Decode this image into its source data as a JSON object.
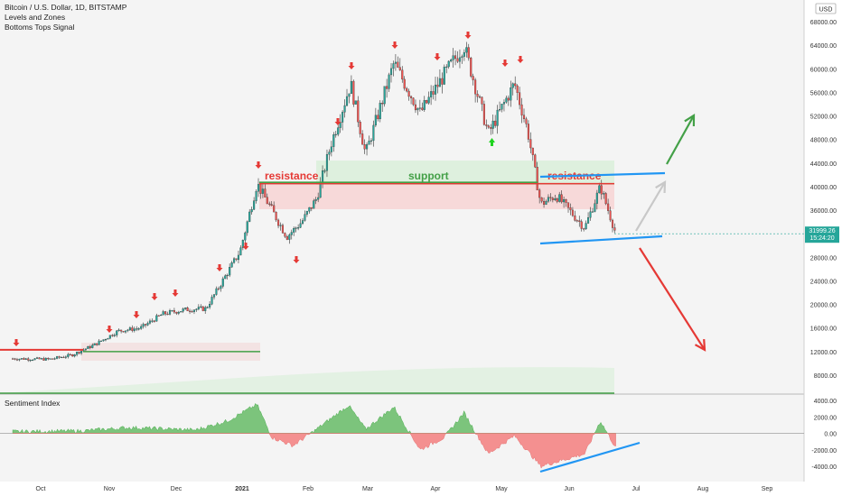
{
  "header": {
    "symbol_line": "Bitcoin / U.S. Dollar, 1D, BITSTAMP",
    "indicators": [
      "Levels and Zones",
      "Bottoms Tops Signal"
    ],
    "currency_badge": "USD"
  },
  "sentiment_panel": {
    "title": "Sentiment Index"
  },
  "last_price": {
    "value": "31999.26",
    "countdown": "15:24:20",
    "color": "#26a69a"
  },
  "annotations": {
    "resistance_left": "resistance",
    "support": "support",
    "resistance_right": "resistance"
  },
  "chart_data": {
    "type": "candlestick",
    "price_axis_ticks": [
      "68000.00",
      "64000.00",
      "60000.00",
      "56000.00",
      "52000.00",
      "48000.00",
      "44000.00",
      "40000.00",
      "36000.00",
      "32000.00",
      "28000.00",
      "24000.00",
      "20000.00",
      "16000.00",
      "12000.00",
      "8000.00"
    ],
    "sentiment_axis_ticks": [
      "4000.00",
      "2000.00",
      "0.00",
      "-2000.00",
      "-4000.00"
    ],
    "time_axis_ticks": [
      "Oct",
      "Nov",
      "Dec",
      "2021",
      "Feb",
      "Mar",
      "Apr",
      "May",
      "Jun",
      "Jul",
      "Aug",
      "Sep"
    ],
    "price_series": [
      {
        "d": "2020-09-20",
        "c": 10800
      },
      {
        "d": "2020-10-05",
        "c": 10700
      },
      {
        "d": "2020-10-15",
        "c": 11400
      },
      {
        "d": "2020-10-25",
        "c": 13100
      },
      {
        "d": "2020-11-05",
        "c": 15500
      },
      {
        "d": "2020-11-15",
        "c": 16000
      },
      {
        "d": "2020-11-25",
        "c": 18400
      },
      {
        "d": "2020-12-05",
        "c": 19100
      },
      {
        "d": "2020-12-15",
        "c": 19300
      },
      {
        "d": "2020-12-22",
        "c": 23500
      },
      {
        "d": "2020-12-31",
        "c": 29000
      },
      {
        "d": "2021-01-08",
        "c": 40500
      },
      {
        "d": "2021-01-15",
        "c": 36000
      },
      {
        "d": "2021-01-22",
        "c": 31500
      },
      {
        "d": "2021-01-29",
        "c": 34000
      },
      {
        "d": "2021-02-05",
        "c": 38000
      },
      {
        "d": "2021-02-12",
        "c": 47500
      },
      {
        "d": "2021-02-21",
        "c": 57500
      },
      {
        "d": "2021-02-28",
        "c": 45500
      },
      {
        "d": "2021-03-13",
        "c": 61000
      },
      {
        "d": "2021-03-25",
        "c": 52500
      },
      {
        "d": "2021-04-05",
        "c": 59000
      },
      {
        "d": "2021-04-14",
        "c": 64000
      },
      {
        "d": "2021-04-25",
        "c": 49000
      },
      {
        "d": "2021-05-07",
        "c": 57500
      },
      {
        "d": "2021-05-13",
        "c": 49500
      },
      {
        "d": "2021-05-19",
        "c": 37000
      },
      {
        "d": "2021-05-26",
        "c": 38500
      },
      {
        "d": "2021-06-08",
        "c": 33000
      },
      {
        "d": "2021-06-15",
        "c": 40000
      },
      {
        "d": "2021-06-22",
        "c": 32000
      }
    ],
    "levels": [
      {
        "kind": "resistance",
        "price": 40500,
        "from": "2021-01-08",
        "to": "2021-06-22",
        "color": "#e53935"
      },
      {
        "kind": "support",
        "price": 40500,
        "from": "2021-01-08",
        "to": "2021-06-22",
        "color": "#43a047"
      },
      {
        "kind": "resistance",
        "price": 12000,
        "from": "2020-09-15",
        "to": "2020-10-25",
        "color": "#e53935"
      },
      {
        "kind": "support",
        "price": 12000,
        "from": "2020-10-25",
        "to": "2021-01-12",
        "color": "#43a047"
      }
    ],
    "sentiment_series": [
      {
        "d": "2020-09-20",
        "v": 200
      },
      {
        "d": "2020-10-20",
        "v": 300
      },
      {
        "d": "2020-11-10",
        "v": 700
      },
      {
        "d": "2020-12-10",
        "v": 400
      },
      {
        "d": "2020-12-25",
        "v": 1500
      },
      {
        "d": "2021-01-08",
        "v": 3500
      },
      {
        "d": "2021-01-15",
        "v": -500
      },
      {
        "d": "2021-01-25",
        "v": -1500
      },
      {
        "d": "2021-02-05",
        "v": 500
      },
      {
        "d": "2021-02-20",
        "v": 3400
      },
      {
        "d": "2021-02-28",
        "v": 500
      },
      {
        "d": "2021-03-13",
        "v": 3200
      },
      {
        "d": "2021-03-25",
        "v": -2000
      },
      {
        "d": "2021-04-05",
        "v": -500
      },
      {
        "d": "2021-04-14",
        "v": 2500
      },
      {
        "d": "2021-04-25",
        "v": -2500
      },
      {
        "d": "2021-05-07",
        "v": -300
      },
      {
        "d": "2021-05-19",
        "v": -4000
      },
      {
        "d": "2021-06-08",
        "v": -2500
      },
      {
        "d": "2021-06-15",
        "v": 1500
      },
      {
        "d": "2021-06-22",
        "v": -1800
      }
    ]
  },
  "colors": {
    "up": "#26a69a",
    "down": "#ef5350",
    "resistance": "#e53935",
    "support": "#43a047",
    "channel": "#2196f3",
    "bull_arrow": "#43a047",
    "bear_arrow": "#e53935",
    "neutral_arrow": "#c8c8c8"
  }
}
